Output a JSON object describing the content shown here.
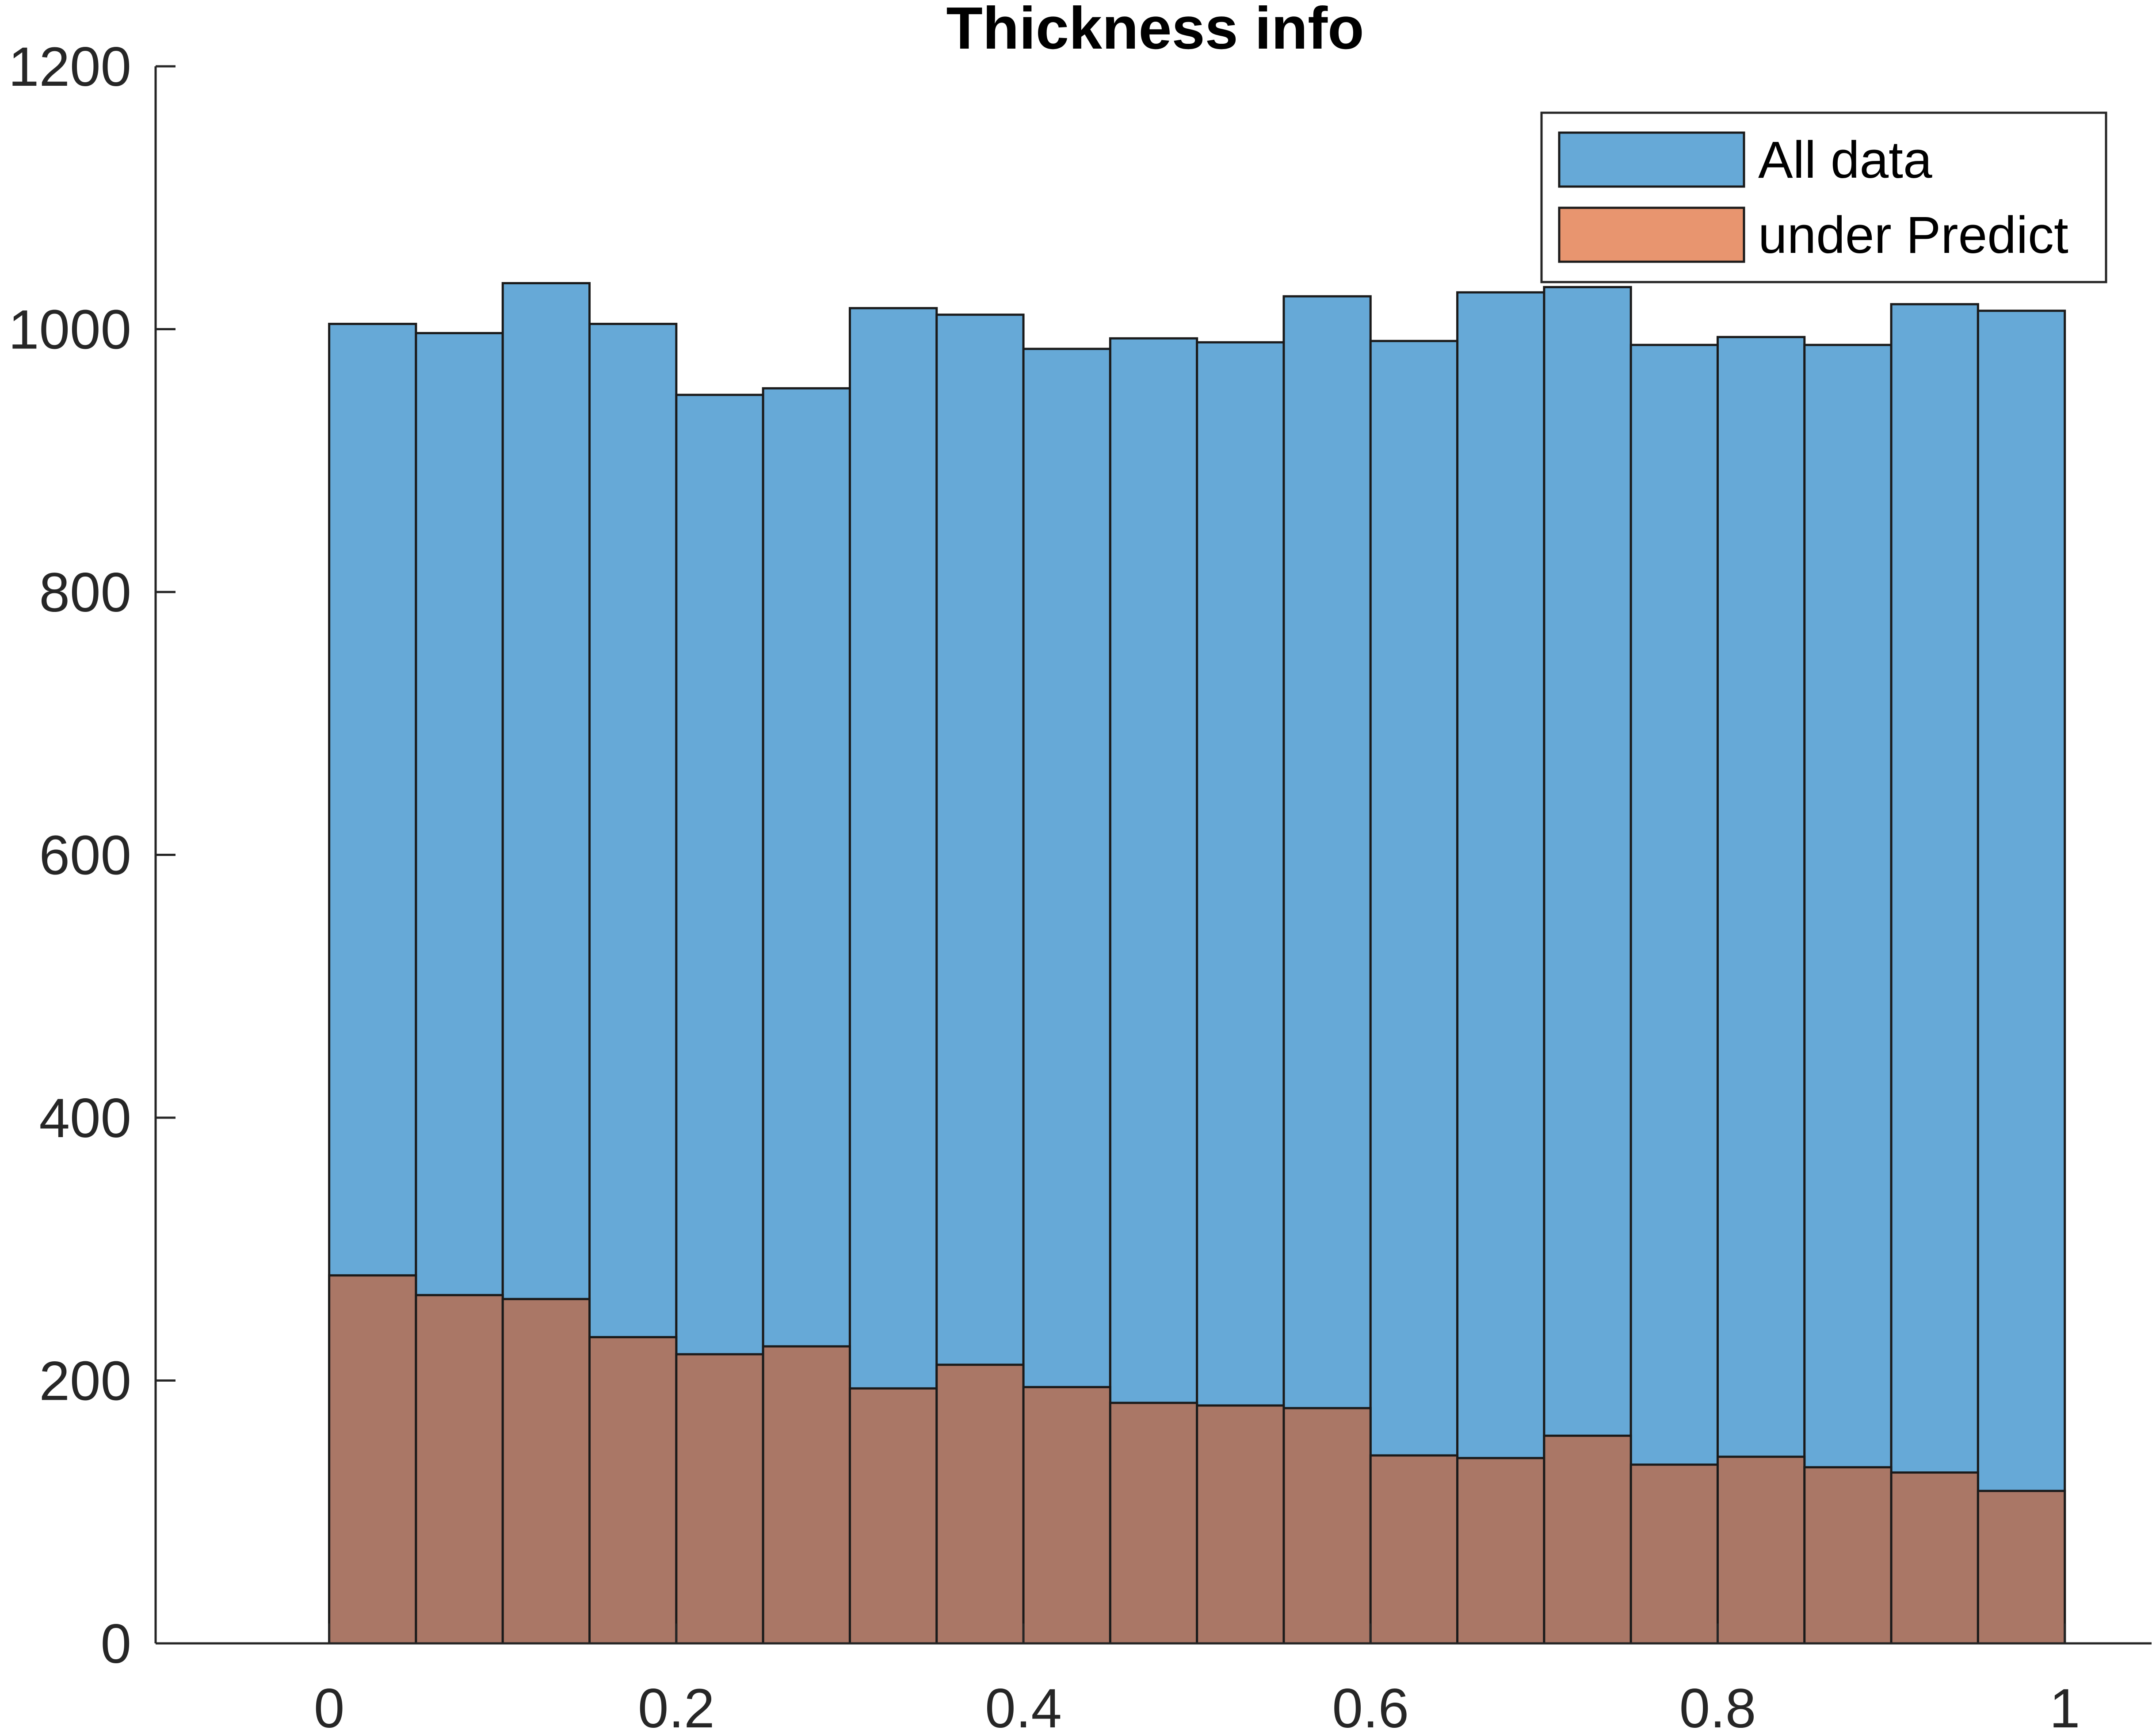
{
  "chart_data": {
    "type": "bar",
    "title": "Thickness info",
    "xlabel": "",
    "ylabel": "",
    "xlim": [
      -0.1,
      1.05
    ],
    "ylim": [
      0,
      1200
    ],
    "xticks": [
      0,
      0.2,
      0.4,
      0.6,
      0.8,
      1
    ],
    "xtick_labels": [
      "0",
      "0.2",
      "0.4",
      "0.6",
      "0.8",
      "1"
    ],
    "yticks": [
      0,
      200,
      400,
      600,
      800,
      1000,
      1200
    ],
    "ytick_labels": [
      "0",
      "200",
      "400",
      "600",
      "800",
      "1000",
      "1200"
    ],
    "bin_edges": [
      0,
      0.05,
      0.1,
      0.15,
      0.2,
      0.25,
      0.3,
      0.35,
      0.4,
      0.45,
      0.5,
      0.55,
      0.6,
      0.65,
      0.7,
      0.75,
      0.8,
      0.85,
      0.9,
      0.95,
      1.0
    ],
    "grid": false,
    "legend_position": "top-right",
    "series": [
      {
        "name": "All data",
        "color": "#66a9d7",
        "values": [
          1004,
          997,
          1035,
          1004,
          950,
          955,
          1016,
          1011,
          985,
          993,
          990,
          1025,
          991,
          1028,
          1032,
          988,
          994,
          988,
          1019,
          1014
        ]
      },
      {
        "name": "under Predict",
        "color": "#e8956f",
        "overlap_color": "#aa7766",
        "values": [
          280,
          265,
          262,
          233,
          220,
          226,
          194,
          212,
          195,
          183,
          181,
          179,
          143,
          141,
          158,
          136,
          142,
          134,
          130,
          116
        ]
      }
    ]
  }
}
